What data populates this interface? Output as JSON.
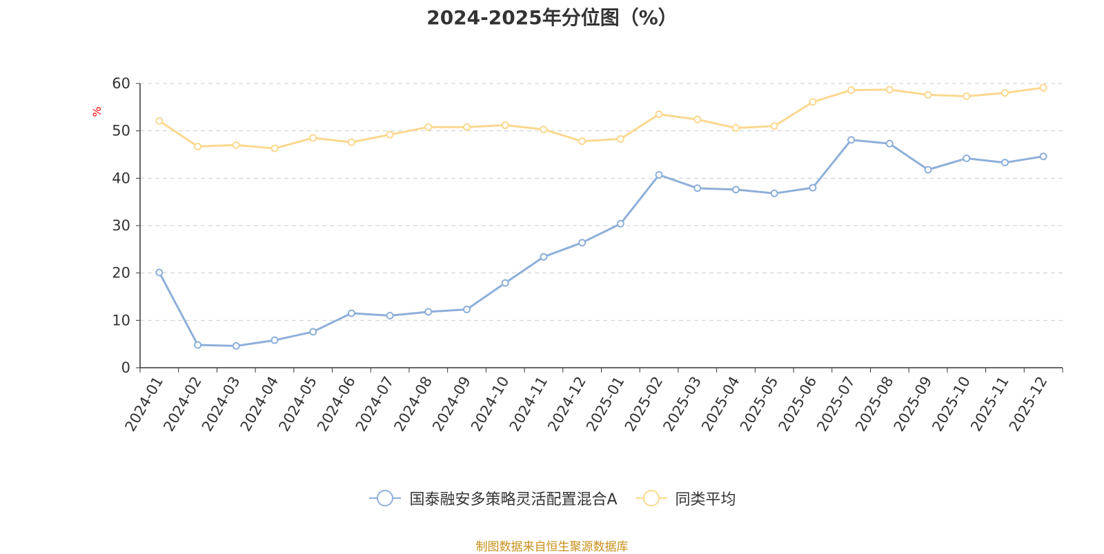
{
  "chart_data": {
    "type": "line",
    "title": "2024-2025年分位图（%）",
    "ylabel": "%",
    "xlabel": "",
    "ylim": [
      0,
      60
    ],
    "yticks": [
      0,
      10,
      20,
      30,
      40,
      50,
      60
    ],
    "grid": true,
    "legend_position": "bottom-center",
    "categories": [
      "2024-01",
      "2024-02",
      "2024-03",
      "2024-04",
      "2024-05",
      "2024-06",
      "2024-07",
      "2024-08",
      "2024-09",
      "2024-10",
      "2024-11",
      "2024-12",
      "2025-01",
      "2025-02",
      "2025-03",
      "2025-04",
      "2025-05",
      "2025-06",
      "2025-07",
      "2025-08",
      "2025-09",
      "2025-10",
      "2025-11",
      "2025-12"
    ],
    "series": [
      {
        "name": "国泰融安多策略灵活配置混合A",
        "color": "#8eafd9",
        "values": [
          20.1,
          4.8,
          4.6,
          5.8,
          7.6,
          11.5,
          11.0,
          11.8,
          12.3,
          17.9,
          23.4,
          26.4,
          30.4,
          40.7,
          37.9,
          37.6,
          36.8,
          38.0,
          48.1,
          47.3,
          41.8,
          44.2,
          43.3,
          44.6
        ]
      },
      {
        "name": "同类平均",
        "color": "#fbd88f",
        "values": [
          52.1,
          46.7,
          47.0,
          46.3,
          48.5,
          47.6,
          49.2,
          50.8,
          50.8,
          51.2,
          50.3,
          47.8,
          48.3,
          53.5,
          52.4,
          50.6,
          51.0,
          56.1,
          58.6,
          58.7,
          57.6,
          57.3,
          58.0,
          59.1
        ]
      }
    ],
    "source": "制图数据来自恒生聚源数据库"
  }
}
